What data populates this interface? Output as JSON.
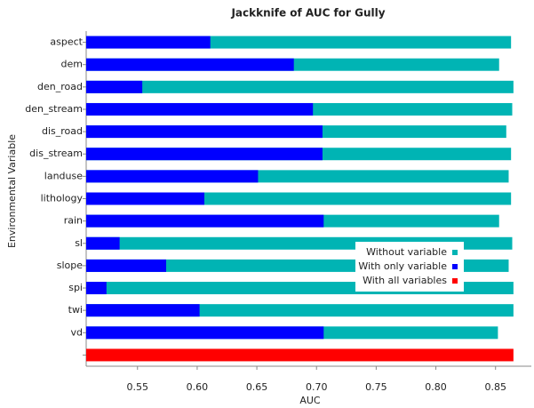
{
  "chart_data": {
    "type": "hbar",
    "title": "Jackknife of AUC for Gully",
    "xlabel": "AUC",
    "ylabel": "Environmental Variable",
    "categories": [
      "aspect",
      "dem",
      "den_road",
      "den_stream",
      "dis_road",
      "dis_stream",
      "landuse",
      "lithology",
      "rain",
      "sl",
      "slope",
      "spi",
      "twi",
      "vd",
      null
    ],
    "series": [
      {
        "name": "Without variable",
        "color": "#00b4b4",
        "values": [
          0.863,
          0.853,
          0.865,
          0.864,
          0.859,
          0.863,
          0.861,
          0.863,
          0.853,
          0.864,
          0.861,
          0.865,
          0.865,
          0.852,
          null
        ]
      },
      {
        "name": "With only variable",
        "color": "#0000ff",
        "values": [
          0.611,
          0.681,
          0.554,
          0.697,
          0.705,
          0.705,
          0.651,
          0.606,
          0.706,
          0.535,
          0.574,
          0.524,
          0.602,
          0.706,
          null
        ]
      },
      {
        "name": "With all variables",
        "color": "#ff0000",
        "values": [
          null,
          null,
          null,
          null,
          null,
          null,
          null,
          null,
          null,
          null,
          null,
          null,
          null,
          null,
          0.865
        ]
      }
    ],
    "xlim": [
      0.507,
      0.88
    ],
    "xticks": [
      0.55,
      {
        "value": 0.6,
        "label": "0.60"
      },
      0.65,
      {
        "value": 0.7,
        "label": "0.70"
      },
      0.75,
      {
        "value": 0.8,
        "label": "0.80"
      },
      0.85
    ]
  }
}
